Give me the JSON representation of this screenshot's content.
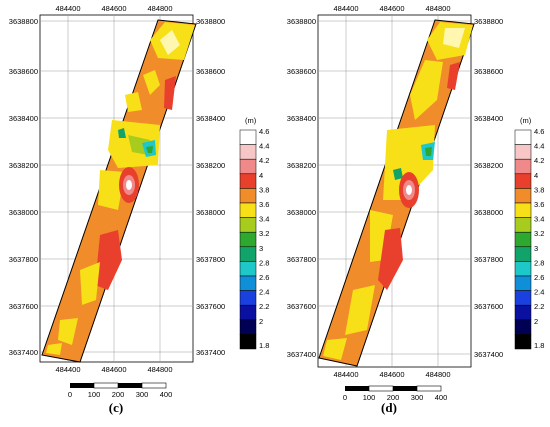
{
  "panels": [
    {
      "caption": "(c)",
      "x_ticks": [
        "484400",
        "484600",
        "484800"
      ],
      "y_ticks": [
        "3638800",
        "3638600",
        "3638400",
        "3638200",
        "3638000",
        "3637800",
        "3637600",
        "3637400"
      ],
      "scale_labels": [
        "0",
        "100",
        "200",
        "300",
        "400"
      ],
      "legend_unit": "(m)",
      "legend_levels": [
        "4.6",
        "4.4",
        "4.2",
        "4",
        "3.8",
        "3.6",
        "3.4",
        "3.2",
        "3",
        "2.8",
        "2.6",
        "2.4",
        "2.2",
        "2",
        "1.8"
      ],
      "legend_colors": [
        "#ffffff",
        "#f7c6c6",
        "#f08a8a",
        "#e8402c",
        "#f08c2a",
        "#f7e017",
        "#a8cc1e",
        "#2ea82e",
        "#11a36a",
        "#1ec8c8",
        "#0f8fd8",
        "#1a40e0",
        "#0a10a0",
        "#000055",
        "#000000"
      ]
    },
    {
      "caption": "(d)",
      "x_ticks": [
        "484400",
        "484600",
        "484800"
      ],
      "y_ticks": [
        "3638800",
        "3638600",
        "3638400",
        "3638200",
        "3638000",
        "3637800",
        "3637600",
        "3637400"
      ],
      "scale_labels": [
        "0",
        "100",
        "200",
        "300",
        "400"
      ],
      "legend_unit": "(m)",
      "legend_levels": [
        "4.6",
        "4.4",
        "4.2",
        "4",
        "3.8",
        "3.6",
        "3.4",
        "3.2",
        "3",
        "2.8",
        "2.6",
        "2.4",
        "2.2",
        "2",
        "1.8"
      ],
      "legend_colors": [
        "#ffffff",
        "#f7c6c6",
        "#f08a8a",
        "#e8402c",
        "#f08c2a",
        "#f7e017",
        "#a8cc1e",
        "#2ea82e",
        "#11a36a",
        "#1ec8c8",
        "#0f8fd8",
        "#1a40e0",
        "#0a10a0",
        "#000055",
        "#000000"
      ]
    }
  ]
}
